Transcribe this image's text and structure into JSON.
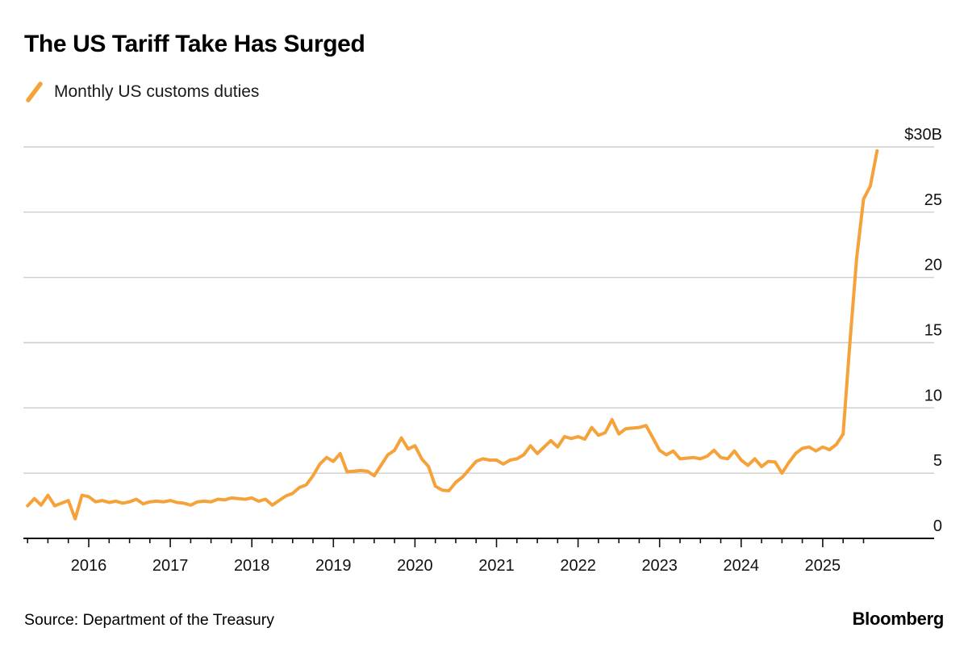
{
  "header": {
    "title": "The US Tariff Take Has Surged"
  },
  "legend": {
    "marker_icon": "orange-slash-swatch",
    "label": "Monthly US customs duties"
  },
  "footer": {
    "source": "Source: Department of the Treasury",
    "brand": "Bloomberg"
  },
  "colors": {
    "line": "#F4A239",
    "grid": "#CECECE",
    "axis": "#111111",
    "text": "#111111"
  },
  "chart_data": {
    "type": "line",
    "title": "The US Tariff Take Has Surged",
    "series_name": "Monthly US customs duties",
    "unit": "billions USD",
    "frequency": "monthly",
    "start_year": 2015,
    "start_month": 4,
    "ylim": [
      0,
      30
    ],
    "grid": "horizontal-only",
    "legend_position": "top-left",
    "y_ticks": [
      0,
      5,
      10,
      15,
      20,
      25,
      30
    ],
    "y_tick_labels": [
      "0",
      "5",
      "10",
      "15",
      "20",
      "25",
      "$30B"
    ],
    "y_top_label": "$30B",
    "x_tick_labels": [
      "2016",
      "2017",
      "2018",
      "2019",
      "2020",
      "2021",
      "2022",
      "2023",
      "2024",
      "2025"
    ],
    "minor_tick_months": [
      1,
      4,
      7,
      10
    ],
    "values": [
      2.5,
      3.05,
      2.55,
      3.3,
      2.5,
      2.7,
      2.9,
      1.5,
      3.3,
      3.2,
      2.8,
      2.9,
      2.75,
      2.85,
      2.7,
      2.8,
      3.0,
      2.65,
      2.8,
      2.85,
      2.8,
      2.9,
      2.75,
      2.7,
      2.55,
      2.8,
      2.85,
      2.8,
      3.0,
      2.95,
      3.1,
      3.05,
      3.0,
      3.1,
      2.85,
      3.0,
      2.55,
      2.9,
      3.25,
      3.45,
      3.9,
      4.1,
      4.8,
      5.7,
      6.2,
      5.9,
      6.5,
      5.1,
      5.15,
      5.2,
      5.15,
      4.8,
      5.6,
      6.4,
      6.75,
      7.7,
      6.85,
      7.1,
      6.1,
      5.5,
      4.0,
      3.7,
      3.65,
      4.3,
      4.7,
      5.3,
      5.9,
      6.1,
      6.0,
      6.0,
      5.7,
      6.0,
      6.1,
      6.4,
      7.1,
      6.5,
      7.0,
      7.5,
      7.0,
      7.8,
      7.65,
      7.8,
      7.6,
      8.5,
      7.9,
      8.1,
      9.1,
      8.0,
      8.4,
      8.45,
      8.5,
      8.65,
      7.7,
      6.75,
      6.4,
      6.7,
      6.1,
      6.15,
      6.2,
      6.1,
      6.3,
      6.75,
      6.2,
      6.1,
      6.7,
      6.0,
      5.6,
      6.1,
      5.5,
      5.9,
      5.85,
      5.0,
      5.8,
      6.5,
      6.9,
      7.0,
      6.7,
      7.0,
      6.8,
      7.2,
      8.0,
      15.0,
      21.5,
      26.0,
      27.0,
      29.7
    ]
  }
}
